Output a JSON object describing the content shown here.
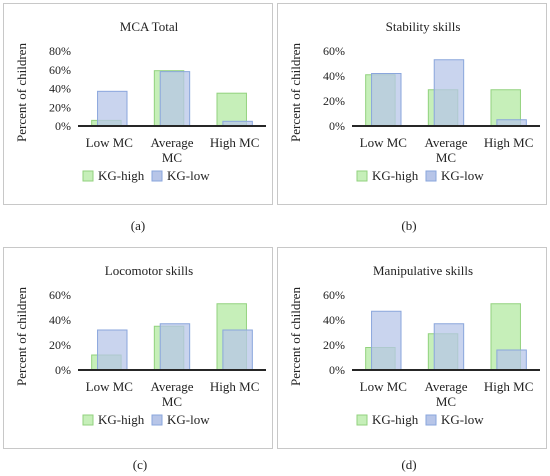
{
  "chart_data": [
    {
      "type": "bar",
      "title": "MCA Total",
      "ylabel": "Percent of children",
      "categories": [
        "Low MC",
        "Average\nMC",
        "High MC"
      ],
      "ylim": [
        0,
        80
      ],
      "yticks": [
        "0%",
        "20%",
        "40%",
        "60%",
        "80%"
      ],
      "series": [
        {
          "name": "KG-high",
          "values": [
            6,
            59,
            35
          ]
        },
        {
          "name": "KG-low",
          "values": [
            37,
            58,
            5
          ]
        }
      ],
      "legend_position": "bottom",
      "caption": "(a)"
    },
    {
      "type": "bar",
      "title": "Stability skills",
      "ylabel": "Percent of children",
      "categories": [
        "Low MC",
        "Average\nMC",
        "High MC"
      ],
      "ylim": [
        0,
        60
      ],
      "yticks": [
        "0%",
        "20%",
        "40%",
        "60%"
      ],
      "series": [
        {
          "name": "KG-high",
          "values": [
            41,
            29,
            29
          ]
        },
        {
          "name": "KG-low",
          "values": [
            42,
            53,
            5
          ]
        }
      ],
      "legend_position": "bottom",
      "caption": "(b)"
    },
    {
      "type": "bar",
      "title": "Locomotor skills",
      "ylabel": "Percent of children",
      "categories": [
        "Low MC",
        "Average\nMC",
        "High MC"
      ],
      "ylim": [
        0,
        60
      ],
      "yticks": [
        "0%",
        "20%",
        "40%",
        "60%"
      ],
      "series": [
        {
          "name": "KG-high",
          "values": [
            12,
            35,
            53
          ]
        },
        {
          "name": "KG-low",
          "values": [
            32,
            37,
            32
          ]
        }
      ],
      "legend_position": "bottom",
      "caption": "(c)"
    },
    {
      "type": "bar",
      "title": "Manipulative skills",
      "ylabel": "Percent of children",
      "categories": [
        "Low MC",
        "Average\nMC",
        "High MC"
      ],
      "ylim": [
        0,
        60
      ],
      "yticks": [
        "0%",
        "20%",
        "40%",
        "60%"
      ],
      "series": [
        {
          "name": "KG-high",
          "values": [
            18,
            29,
            53
          ]
        },
        {
          "name": "KG-low",
          "values": [
            47,
            37,
            16
          ]
        }
      ],
      "legend_position": "bottom",
      "caption": "(d)"
    }
  ],
  "colors": {
    "kg_high_fill": "#c6efb9",
    "kg_high_stroke": "#92d27e",
    "kg_low_fill": "#b7c5e8",
    "kg_low_stroke": "#8aa6dc",
    "axis": "#262626"
  }
}
